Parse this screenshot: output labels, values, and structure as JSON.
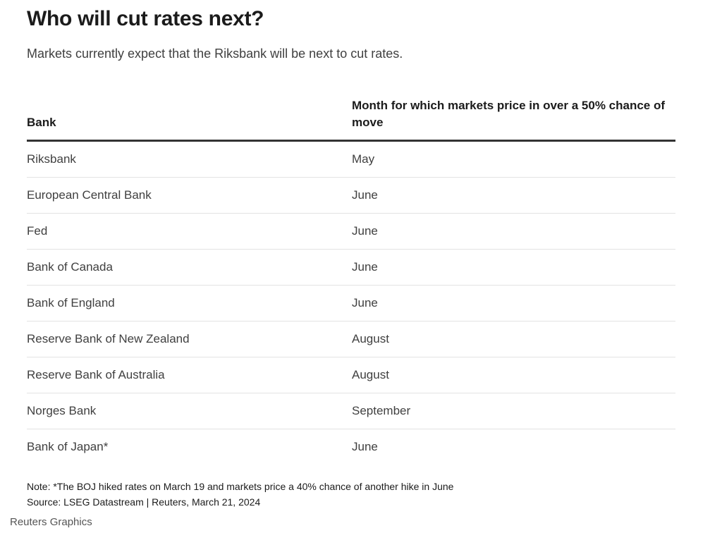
{
  "chart_data": {
    "type": "table",
    "title": "Who will cut rates next?",
    "subtitle": "Markets currently expect that the Riksbank will be next to cut rates.",
    "columns": [
      "Bank",
      "Month for which markets price in over a 50% chance of move"
    ],
    "rows": [
      {
        "bank": "Riksbank",
        "month": "May"
      },
      {
        "bank": "European Central Bank",
        "month": "June"
      },
      {
        "bank": "Fed",
        "month": "June"
      },
      {
        "bank": "Bank of Canada",
        "month": "June"
      },
      {
        "bank": "Bank of England",
        "month": "June"
      },
      {
        "bank": "Reserve Bank of New Zealand",
        "month": "August"
      },
      {
        "bank": "Reserve Bank of Australia",
        "month": "August"
      },
      {
        "bank": "Norges Bank",
        "month": "September"
      },
      {
        "bank": "Bank of Japan*",
        "month": "June"
      }
    ],
    "note": "Note: *The BOJ hiked rates on March 19 and markets price a 40% chance of another hike in June",
    "source": "Source: LSEG Datastream | Reuters, March 21, 2024"
  },
  "credit": "Reuters Graphics"
}
